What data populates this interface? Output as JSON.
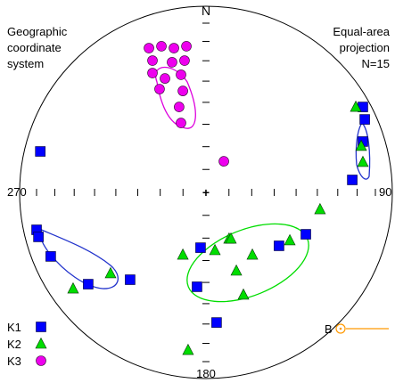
{
  "chart_data": {
    "type": "scatter",
    "projection_label": [
      "Equal-area",
      "projection"
    ],
    "coordinate_label": [
      "Geographic",
      "coordinate",
      "system"
    ],
    "n_label": "N=15",
    "directions": {
      "north": "N",
      "east": "90",
      "south": "180",
      "west": "270"
    },
    "colors": {
      "K1": "#0000ff",
      "K2": "#00dd00",
      "K3": "#ee00ee",
      "ellipse_k1": "#2233cc",
      "ellipse_k2": "#00dd00",
      "ellipse_k3": "#dd00dd",
      "bedding": "#ff9900"
    },
    "legend": [
      {
        "label": "K1",
        "symbol": "square"
      },
      {
        "label": "K2",
        "symbol": "triangle"
      },
      {
        "label": "K3",
        "symbol": "circle"
      }
    ],
    "bedding_label": "B",
    "series": [
      {
        "name": "K1",
        "symbol": "square",
        "points": [
          {
            "x": -0.889,
            "y": 0.22
          },
          {
            "x": -0.909,
            "y": -0.201
          },
          {
            "x": -0.899,
            "y": -0.239
          },
          {
            "x": -0.833,
            "y": -0.344
          },
          {
            "x": -0.632,
            "y": -0.493
          },
          {
            "x": -0.407,
            "y": -0.469
          },
          {
            "x": -0.029,
            "y": -0.297
          },
          {
            "x": -0.048,
            "y": -0.507
          },
          {
            "x": 0.057,
            "y": -0.699
          },
          {
            "x": 0.392,
            "y": -0.287
          },
          {
            "x": 0.536,
            "y": -0.225
          },
          {
            "x": 0.842,
            "y": 0.459
          },
          {
            "x": 0.852,
            "y": 0.392
          },
          {
            "x": 0.842,
            "y": 0.273
          },
          {
            "x": 0.785,
            "y": 0.067
          }
        ]
      },
      {
        "name": "K2",
        "symbol": "triangle",
        "points": [
          {
            "x": -0.512,
            "y": -0.435
          },
          {
            "x": -0.713,
            "y": -0.517
          },
          {
            "x": -0.124,
            "y": -0.335
          },
          {
            "x": 0.124,
            "y": -0.249
          },
          {
            "x": 0.134,
            "y": -0.249
          },
          {
            "x": 0.048,
            "y": -0.311
          },
          {
            "x": 0.163,
            "y": -0.421
          },
          {
            "x": 0.249,
            "y": -0.335
          },
          {
            "x": 0.201,
            "y": -0.55
          },
          {
            "x": 0.45,
            "y": -0.258
          },
          {
            "x": 0.612,
            "y": -0.091
          },
          {
            "x": 0.804,
            "y": 0.459
          },
          {
            "x": 0.833,
            "y": 0.249
          },
          {
            "x": 0.842,
            "y": 0.163
          },
          {
            "x": -0.096,
            "y": -0.847
          }
        ]
      },
      {
        "name": "K3",
        "symbol": "circle",
        "points": [
          {
            "x": -0.306,
            "y": 0.775
          },
          {
            "x": -0.239,
            "y": 0.785
          },
          {
            "x": -0.172,
            "y": 0.775
          },
          {
            "x": -0.105,
            "y": 0.785
          },
          {
            "x": -0.287,
            "y": 0.708
          },
          {
            "x": -0.182,
            "y": 0.699
          },
          {
            "x": -0.115,
            "y": 0.708
          },
          {
            "x": -0.287,
            "y": 0.641
          },
          {
            "x": -0.22,
            "y": 0.612
          },
          {
            "x": -0.134,
            "y": 0.632
          },
          {
            "x": -0.249,
            "y": 0.555
          },
          {
            "x": -0.124,
            "y": 0.545
          },
          {
            "x": -0.144,
            "y": 0.459
          },
          {
            "x": -0.134,
            "y": 0.373
          },
          {
            "x": 0.096,
            "y": 0.167
          }
        ]
      }
    ]
  }
}
